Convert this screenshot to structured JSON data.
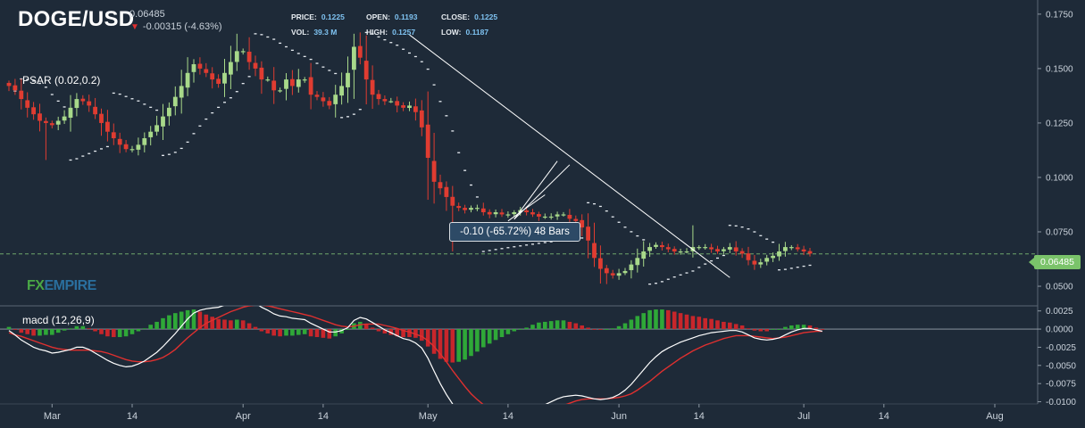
{
  "header": {
    "symbol": "DOGE/USD",
    "current_price": "0.06485",
    "change": "-0.00315 (-4.63%)",
    "price_label": "PRICE:",
    "price_value": "0.1225",
    "open_label": "OPEN:",
    "open_value": "0.1193",
    "close_label": "CLOSE:",
    "close_value": "0.1225",
    "vol_label": "VOL:",
    "vol_value": "39.3 M",
    "high_label": "HIGH:",
    "high_value": "0.1257",
    "low_label": "LOW:",
    "low_value": "0.1187"
  },
  "indicators": {
    "psar": "PSAR (0.02,0.2)",
    "macd": "macd (12,26,9)"
  },
  "logo": {
    "fx": "FX",
    "empire": "EMPIRE"
  },
  "price_tag": "0.06485",
  "measure_label": "-0.10 (-65.72%) 48 Bars",
  "colors": {
    "background": "#1e2a38",
    "up": "#a8d98a",
    "down": "#e03c31",
    "macd_line": "#ffffff",
    "signal_line": "#e0302f",
    "hist_up": "#2fa838",
    "hist_down": "#c8262b"
  },
  "chart_data": {
    "type": "candlestick",
    "x_ticks": [
      "Mar",
      "14",
      "Apr",
      "14",
      "May",
      "14",
      "Jun",
      "14",
      "Jul",
      "14",
      "Aug"
    ],
    "x_tick_bar_index": [
      7,
      20,
      38,
      51,
      68,
      81,
      99,
      112,
      129,
      142,
      160
    ],
    "price_axis": {
      "ylim": [
        0.041,
        0.1815
      ],
      "ticks": [
        "0.1750",
        "0.1500",
        "0.1250",
        "0.1000",
        "0.0750",
        "0.0500"
      ]
    },
    "macd_axis": {
      "ylim": [
        -0.0103,
        0.0032
      ],
      "ticks": [
        "0.0025",
        "0.0000",
        "-0.0025",
        "-0.0050",
        "-0.0075",
        "-0.0100"
      ]
    },
    "last_price": 0.06485,
    "closes": [
      0.142,
      0.14,
      0.136,
      0.132,
      0.129,
      0.126,
      0.125,
      0.124,
      0.126,
      0.128,
      0.132,
      0.136,
      0.135,
      0.133,
      0.129,
      0.125,
      0.121,
      0.118,
      0.115,
      0.113,
      0.113,
      0.115,
      0.118,
      0.121,
      0.124,
      0.128,
      0.132,
      0.137,
      0.142,
      0.148,
      0.152,
      0.15,
      0.148,
      0.145,
      0.143,
      0.148,
      0.153,
      0.158,
      0.158,
      0.153,
      0.15,
      0.145,
      0.145,
      0.14,
      0.14,
      0.145,
      0.142,
      0.145,
      0.145,
      0.138,
      0.137,
      0.135,
      0.133,
      0.138,
      0.142,
      0.148,
      0.16,
      0.155,
      0.145,
      0.138,
      0.136,
      0.135,
      0.135,
      0.133,
      0.132,
      0.133,
      0.13,
      0.123,
      0.109,
      0.098,
      0.095,
      0.091,
      0.087,
      0.086,
      0.085,
      0.086,
      0.086,
      0.084,
      0.083,
      0.084,
      0.083,
      0.083,
      0.084,
      0.085,
      0.084,
      0.083,
      0.082,
      0.082,
      0.082,
      0.083,
      0.083,
      0.081,
      0.08,
      0.077,
      0.071,
      0.063,
      0.058,
      0.056,
      0.055,
      0.056,
      0.057,
      0.06,
      0.063,
      0.066,
      0.068,
      0.069,
      0.068,
      0.067,
      0.066,
      0.066,
      0.066,
      0.068,
      0.068,
      0.068,
      0.067,
      0.066,
      0.067,
      0.068,
      0.066,
      0.065,
      0.062,
      0.06,
      0.061,
      0.063,
      0.064,
      0.066,
      0.068,
      0.068,
      0.067,
      0.066,
      0.065
    ],
    "macd": [
      -0.0002,
      -0.0008,
      -0.0015,
      -0.002,
      -0.0025,
      -0.0028,
      -0.003,
      -0.0033,
      -0.0032,
      -0.003,
      -0.0028,
      -0.0025,
      -0.0025,
      -0.0028,
      -0.0033,
      -0.0038,
      -0.0043,
      -0.0047,
      -0.005,
      -0.0052,
      -0.0051,
      -0.0048,
      -0.0044,
      -0.0038,
      -0.0032,
      -0.0024,
      -0.0015,
      -0.0006,
      0.0004,
      0.0014,
      0.0022,
      0.0026,
      0.0028,
      0.0029,
      0.003,
      0.0033,
      0.0036,
      0.004,
      0.0042,
      0.004,
      0.0036,
      0.003,
      0.0026,
      0.0021,
      0.0018,
      0.0017,
      0.0015,
      0.0014,
      0.0013,
      0.0008,
      0.0004,
      0.0,
      -0.0004,
      -0.0004,
      -0.0002,
      0.0002,
      0.0012,
      0.0016,
      0.0014,
      0.0009,
      0.0004,
      -0.0001,
      -0.0005,
      -0.0009,
      -0.0013,
      -0.0015,
      -0.0019,
      -0.0026,
      -0.004,
      -0.0058,
      -0.0075,
      -0.009,
      -0.0103,
      -0.0113,
      -0.0121,
      -0.0126,
      -0.0128,
      -0.0129,
      -0.013,
      -0.013,
      -0.0129,
      -0.0127,
      -0.0124,
      -0.0121,
      -0.0118,
      -0.0113,
      -0.0108,
      -0.0104,
      -0.01,
      -0.0096,
      -0.0093,
      -0.0092,
      -0.0091,
      -0.0092,
      -0.0094,
      -0.0096,
      -0.0097,
      -0.0096,
      -0.0094,
      -0.009,
      -0.0084,
      -0.0076,
      -0.0066,
      -0.0056,
      -0.0046,
      -0.0038,
      -0.0031,
      -0.0026,
      -0.0022,
      -0.0018,
      -0.0015,
      -0.0012,
      -0.0009,
      -0.0007,
      -0.0005,
      -0.0004,
      -0.0003,
      -0.0002,
      -0.0002,
      -0.0004,
      -0.0008,
      -0.0012,
      -0.0014,
      -0.0015,
      -0.0014,
      -0.0012,
      -0.0008,
      -0.0004,
      -0.0001,
      0.0001,
      0.0001,
      -0.0001,
      -0.0003
    ],
    "signal": [
      -0.0005,
      -0.0008,
      -0.001,
      -0.0013,
      -0.0016,
      -0.0019,
      -0.0022,
      -0.0025,
      -0.0027,
      -0.0028,
      -0.0029,
      -0.0029,
      -0.0029,
      -0.0029,
      -0.003,
      -0.0031,
      -0.0033,
      -0.0036,
      -0.0039,
      -0.0042,
      -0.0044,
      -0.0045,
      -0.0045,
      -0.0044,
      -0.0042,
      -0.0039,
      -0.0034,
      -0.0028,
      -0.002,
      -0.0012,
      -0.0005,
      0.0002,
      0.0008,
      0.0012,
      0.0016,
      0.002,
      0.0024,
      0.0027,
      0.003,
      0.0032,
      0.0033,
      0.0033,
      0.0032,
      0.003,
      0.0028,
      0.0026,
      0.0024,
      0.0022,
      0.002,
      0.0018,
      0.0015,
      0.0012,
      0.0009,
      0.0006,
      0.0004,
      0.0003,
      0.0004,
      0.0006,
      0.0007,
      0.0007,
      0.0007,
      0.0005,
      0.0003,
      0.0001,
      -0.0002,
      -0.0004,
      -0.0007,
      -0.001,
      -0.0016,
      -0.0024,
      -0.0034,
      -0.0045,
      -0.0057,
      -0.0068,
      -0.0079,
      -0.0089,
      -0.0097,
      -0.0104,
      -0.011,
      -0.0115,
      -0.0118,
      -0.012,
      -0.0121,
      -0.0121,
      -0.012,
      -0.0119,
      -0.0117,
      -0.0114,
      -0.0111,
      -0.0108,
      -0.0105,
      -0.0102,
      -0.0099,
      -0.0097,
      -0.0096,
      -0.0096,
      -0.0096,
      -0.0096,
      -0.0095,
      -0.0094,
      -0.0092,
      -0.0089,
      -0.0084,
      -0.0078,
      -0.0072,
      -0.0065,
      -0.0058,
      -0.0052,
      -0.0046,
      -0.004,
      -0.0035,
      -0.003,
      -0.0026,
      -0.0022,
      -0.0019,
      -0.0016,
      -0.0013,
      -0.0011,
      -0.0009,
      -0.0009,
      -0.0009,
      -0.001,
      -0.0011,
      -0.0012,
      -0.0013,
      -0.0012,
      -0.0011,
      -0.0009,
      -0.0007,
      -0.0005,
      -0.0004,
      -0.0003,
      -0.0003
    ]
  }
}
